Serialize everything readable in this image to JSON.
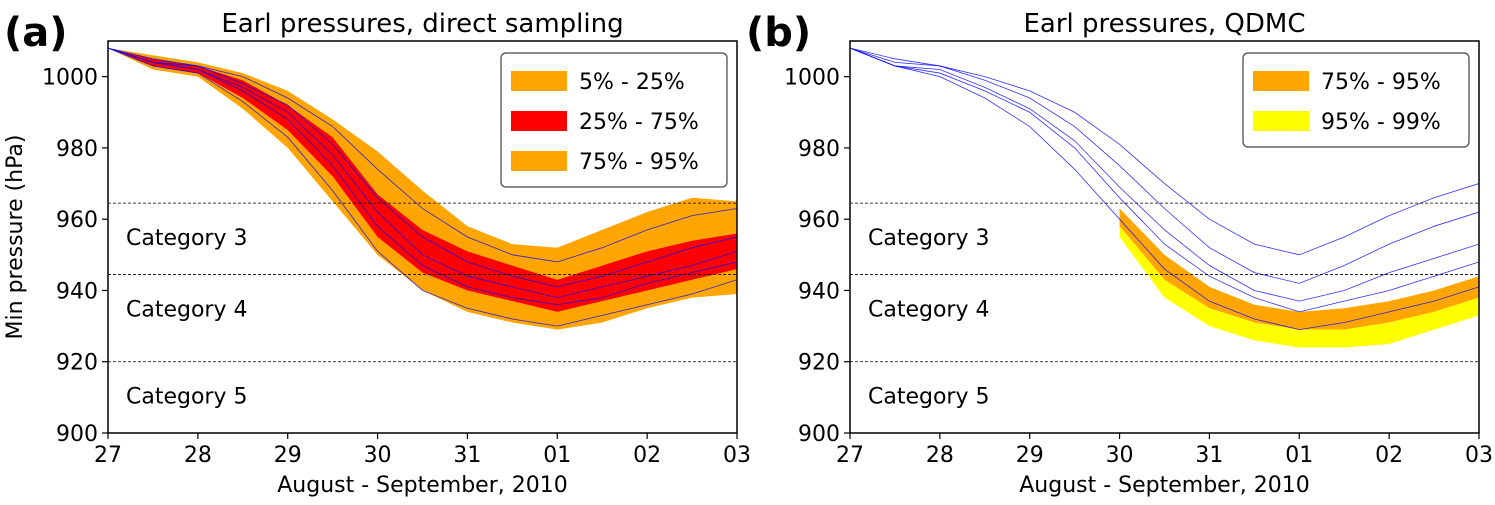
{
  "chart_data": [
    {
      "type": "line",
      "panel_label": "(a)",
      "title": "Earl pressures, direct sampling",
      "xlabel": "August - September, 2010",
      "ylabel": "Min pressure (hPa)",
      "x": [
        0,
        0.5,
        1,
        1.5,
        2,
        2.5,
        3,
        3.5,
        4,
        4.5,
        5,
        5.5,
        6,
        6.5,
        7
      ],
      "xlim": [
        0,
        7
      ],
      "xticks": [
        {
          "value": 0,
          "label": "27"
        },
        {
          "value": 1,
          "label": "28"
        },
        {
          "value": 2,
          "label": "29"
        },
        {
          "value": 3,
          "label": "30"
        },
        {
          "value": 4,
          "label": "31"
        },
        {
          "value": 5,
          "label": "01"
        },
        {
          "value": 6,
          "label": "02"
        },
        {
          "value": 7,
          "label": "03"
        }
      ],
      "ylim": [
        900,
        1010
      ],
      "yticks": [
        900,
        920,
        940,
        960,
        980,
        1000
      ],
      "hlines": [
        {
          "value": 964.5,
          "label": "Category 3"
        },
        {
          "value": 944.5,
          "label": "Category 4"
        },
        {
          "value": 920,
          "label": "Category 5"
        }
      ],
      "legend": "upper right",
      "bands": [
        {
          "name": "5% - 25%",
          "color": "#ffa500",
          "lower": [
            1008,
            1002,
            1000,
            991,
            980,
            965,
            950,
            940,
            934,
            931,
            929,
            931,
            935,
            938,
            939
          ],
          "upper": [
            1008,
            1003,
            1001,
            994,
            985,
            972,
            955,
            945,
            940,
            937,
            934,
            937,
            940,
            943,
            946
          ]
        },
        {
          "name": "25% - 75%",
          "color": "#ff0000",
          "lower": [
            1008,
            1003,
            1001,
            994,
            985,
            972,
            955,
            945,
            940,
            937,
            934,
            937,
            940,
            943,
            946
          ],
          "upper": [
            1008,
            1005,
            1003,
            999,
            992,
            983,
            967,
            957,
            951,
            947,
            943,
            947,
            951,
            954,
            956
          ]
        },
        {
          "name": "75% - 95%",
          "color": "#ffa500",
          "lower": [
            1008,
            1005,
            1003,
            999,
            992,
            983,
            967,
            957,
            951,
            947,
            943,
            947,
            951,
            954,
            956
          ],
          "upper": [
            1008,
            1006,
            1004,
            1001,
            996,
            988,
            979,
            968,
            958,
            953,
            952,
            957,
            962,
            966,
            965
          ]
        }
      ],
      "members_color": "#0000ff",
      "members": [
        [
          1008,
          1004,
          1002,
          997,
          990,
          978,
          962,
          950,
          944,
          941,
          938,
          941,
          944,
          947,
          951
        ],
        [
          1008,
          1003,
          1001,
          993,
          983,
          968,
          951,
          940,
          935,
          932,
          930,
          933,
          936,
          939,
          943
        ],
        [
          1008,
          1005,
          1003,
          1000,
          994,
          986,
          974,
          963,
          955,
          950,
          948,
          952,
          957,
          961,
          963
        ],
        [
          1008,
          1004,
          1002,
          996,
          988,
          975,
          958,
          947,
          941,
          938,
          936,
          938,
          942,
          945,
          948
        ],
        [
          1008,
          1004,
          1003,
          998,
          992,
          981,
          966,
          955,
          948,
          944,
          941,
          944,
          948,
          952,
          955
        ]
      ]
    },
    {
      "type": "line",
      "panel_label": "(b)",
      "title": "Earl pressures, QDMC",
      "xlabel": "August - September, 2010",
      "x": [
        0,
        0.5,
        1,
        1.5,
        2,
        2.5,
        3,
        3.5,
        4,
        4.5,
        5,
        5.5,
        6,
        6.5,
        7
      ],
      "xlim": [
        0,
        7
      ],
      "xticks": [
        {
          "value": 0,
          "label": "27"
        },
        {
          "value": 1,
          "label": "28"
        },
        {
          "value": 2,
          "label": "29"
        },
        {
          "value": 3,
          "label": "30"
        },
        {
          "value": 4,
          "label": "31"
        },
        {
          "value": 5,
          "label": "01"
        },
        {
          "value": 6,
          "label": "02"
        },
        {
          "value": 7,
          "label": "03"
        }
      ],
      "ylim": [
        900,
        1010
      ],
      "yticks": [
        900,
        920,
        940,
        960,
        980,
        1000
      ],
      "hlines": [
        {
          "value": 964.5,
          "label": "Category 3"
        },
        {
          "value": 944.5,
          "label": "Category 4"
        },
        {
          "value": 920,
          "label": "Category 5"
        }
      ],
      "legend": "upper right",
      "bands": [
        {
          "name": "75% - 95%",
          "color": "#ffa500",
          "lower": [
            null,
            null,
            null,
            null,
            null,
            null,
            958,
            943,
            935,
            931,
            929,
            929,
            931,
            934,
            938
          ],
          "upper": [
            null,
            null,
            null,
            null,
            null,
            null,
            963,
            950,
            941,
            936,
            934,
            935,
            937,
            940,
            944
          ]
        },
        {
          "name": "95% - 99%",
          "color": "#ffff00",
          "lower": [
            null,
            null,
            null,
            null,
            null,
            null,
            955,
            938,
            930,
            926,
            924,
            924,
            925,
            929,
            933
          ],
          "upper": [
            null,
            null,
            null,
            null,
            null,
            null,
            958,
            943,
            935,
            931,
            929,
            929,
            931,
            934,
            938
          ]
        }
      ],
      "members_color": "#0000ff",
      "members": [
        [
          1008,
          1003,
          1001,
          996,
          990,
          980,
          966,
          953,
          944,
          938,
          934,
          937,
          940,
          944,
          948
        ],
        [
          1008,
          1004,
          1003,
          999,
          994,
          986,
          975,
          963,
          952,
          945,
          942,
          947,
          953,
          958,
          962
        ],
        [
          1008,
          1003,
          1000,
          994,
          986,
          974,
          960,
          946,
          937,
          932,
          929,
          931,
          934,
          937,
          941
        ],
        [
          1008,
          1005,
          1003,
          1000,
          996,
          990,
          981,
          970,
          960,
          953,
          950,
          955,
          961,
          966,
          970
        ],
        [
          1008,
          1003,
          1002,
          997,
          991,
          982,
          969,
          957,
          947,
          940,
          937,
          940,
          945,
          949,
          953
        ]
      ]
    }
  ]
}
